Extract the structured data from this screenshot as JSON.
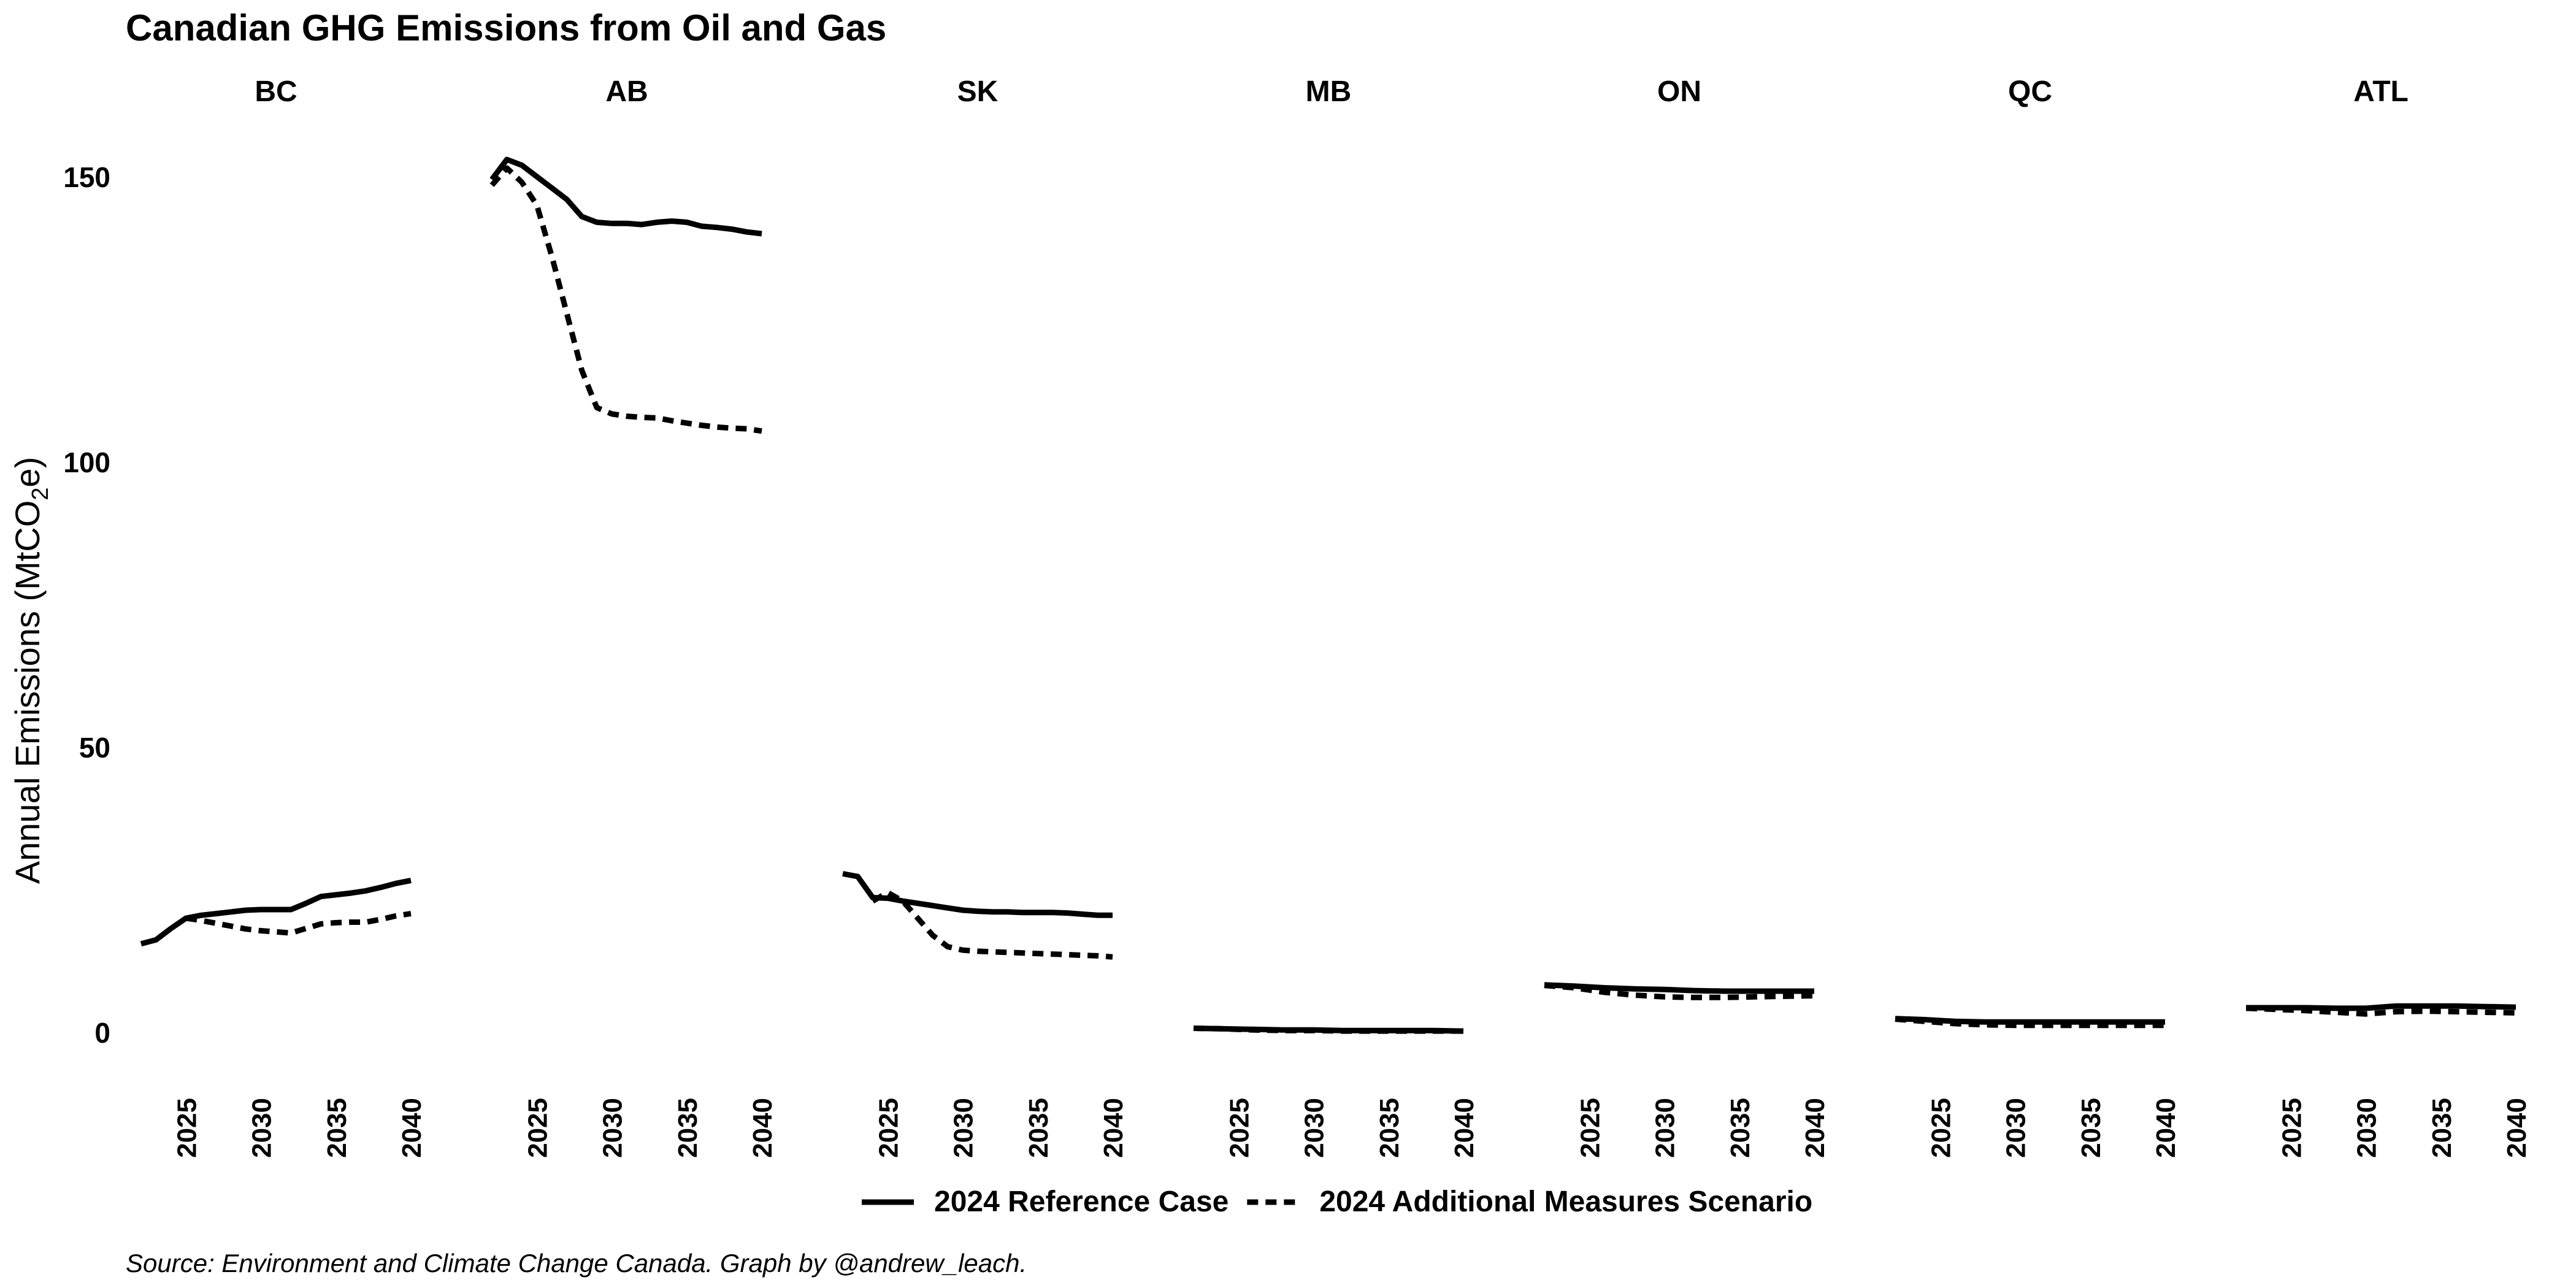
{
  "chart_data": {
    "type": "line",
    "title": "Canadian GHG Emissions from Oil and Gas",
    "ylabel_main": "Annual Emissions  (MtCO",
    "ylabel_sub": "2",
    "ylabel_end": "e)",
    "xlabel": "",
    "caption": "Source: Environment and Climate Change Canada. Graph by @andrew_leach.",
    "ylim": [
      -4,
      160
    ],
    "yticks": [
      0,
      50,
      100,
      150
    ],
    "xlim": [
      2022,
      2040
    ],
    "xticks": [
      2025,
      2030,
      2035,
      2040
    ],
    "grid": false,
    "legend_position": "bottom",
    "series_styles": [
      {
        "name": "2024 Reference Case",
        "dash": "solid",
        "color": "#000000"
      },
      {
        "name": "2024 Additional Measures Scenario",
        "dash": "dashed",
        "color": "#000000"
      }
    ],
    "panels": [
      {
        "label": "BC",
        "series": [
          {
            "name": "2024 Reference Case",
            "x": [
              2022,
              2023,
              2024,
              2025,
              2026,
              2027,
              2028,
              2029,
              2030,
              2031,
              2032,
              2033,
              2034,
              2035,
              2036,
              2037,
              2038,
              2039,
              2040
            ],
            "values": [
              15.5,
              16.2,
              18.2,
              20.0,
              20.5,
              20.8,
              21.1,
              21.4,
              21.5,
              21.5,
              21.5,
              22.6,
              23.8,
              24.1,
              24.4,
              24.8,
              25.4,
              26.1,
              26.6
            ]
          },
          {
            "name": "2024 Additional Measures Scenario",
            "x": [
              2025,
              2026,
              2027,
              2028,
              2029,
              2030,
              2031,
              2032,
              2033,
              2034,
              2035,
              2036,
              2037,
              2038,
              2039,
              2040
            ],
            "values": [
              20.0,
              19.6,
              19.1,
              18.6,
              18.1,
              17.8,
              17.6,
              17.4,
              18.2,
              19.0,
              19.2,
              19.3,
              19.3,
              19.8,
              20.4,
              20.8
            ]
          }
        ]
      },
      {
        "label": "AB",
        "series": [
          {
            "name": "2024 Reference Case",
            "x": [
              2022,
              2023,
              2024,
              2025,
              2026,
              2027,
              2028,
              2029,
              2030,
              2031,
              2032,
              2033,
              2034,
              2035,
              2036,
              2037,
              2038,
              2039,
              2040
            ],
            "values": [
              149.5,
              153.0,
              152.0,
              150.0,
              148.0,
              146.0,
              143.0,
              142.0,
              141.8,
              141.8,
              141.6,
              142.0,
              142.2,
              142.0,
              141.3,
              141.1,
              140.8,
              140.3,
              140.0
            ]
          },
          {
            "name": "2024 Additional Measures Scenario",
            "x": [
              2022,
              2023,
              2024,
              2025,
              2026,
              2027,
              2028,
              2029,
              2030,
              2031,
              2032,
              2033,
              2034,
              2035,
              2036,
              2037,
              2038,
              2039,
              2040
            ],
            "values": [
              148.5,
              151.5,
              149.0,
              145.0,
              136.0,
              126.0,
              116.0,
              109.5,
              108.4,
              108.0,
              107.8,
              107.7,
              107.2,
              106.8,
              106.4,
              106.1,
              105.9,
              105.8,
              105.4
            ]
          }
        ]
      },
      {
        "label": "SK",
        "series": [
          {
            "name": "2024 Reference Case",
            "x": [
              2022,
              2023,
              2024,
              2025,
              2026,
              2027,
              2028,
              2029,
              2030,
              2031,
              2032,
              2033,
              2034,
              2035,
              2036,
              2037,
              2038,
              2039,
              2040
            ],
            "values": [
              27.8,
              27.3,
              23.6,
              23.5,
              23.0,
              22.6,
              22.2,
              21.8,
              21.4,
              21.2,
              21.1,
              21.1,
              21.0,
              21.0,
              21.0,
              20.9,
              20.7,
              20.5,
              20.5
            ]
          },
          {
            "name": "2024 Additional Measures Scenario",
            "x": [
              2024,
              2025,
              2026,
              2027,
              2028,
              2029,
              2030,
              2031,
              2032,
              2033,
              2034,
              2035,
              2036,
              2037,
              2038,
              2039,
              2040
            ],
            "values": [
              23.0,
              24.5,
              23.0,
              20.0,
              17.0,
              15.0,
              14.4,
              14.2,
              14.1,
              14.0,
              13.9,
              13.8,
              13.7,
              13.6,
              13.5,
              13.4,
              13.2
            ]
          }
        ]
      },
      {
        "label": "MB",
        "series": [
          {
            "name": "2024 Reference Case",
            "x": [
              2022,
              2024,
              2026,
              2028,
              2030,
              2032,
              2034,
              2036,
              2038,
              2040
            ],
            "values": [
              0.7,
              0.6,
              0.5,
              0.4,
              0.4,
              0.3,
              0.3,
              0.3,
              0.3,
              0.2
            ]
          },
          {
            "name": "2024 Additional Measures Scenario",
            "x": [
              2022,
              2024,
              2026,
              2028,
              2030,
              2032,
              2034,
              2036,
              2038,
              2040
            ],
            "values": [
              0.7,
              0.6,
              0.4,
              0.3,
              0.3,
              0.2,
              0.2,
              0.2,
              0.2,
              0.2
            ]
          }
        ]
      },
      {
        "label": "ON",
        "series": [
          {
            "name": "2024 Reference Case",
            "x": [
              2022,
              2024,
              2026,
              2028,
              2030,
              2032,
              2034,
              2036,
              2038,
              2040
            ],
            "values": [
              8.3,
              8.1,
              7.8,
              7.6,
              7.5,
              7.3,
              7.2,
              7.2,
              7.2,
              7.2
            ]
          },
          {
            "name": "2024 Additional Measures Scenario",
            "x": [
              2022,
              2024,
              2026,
              2028,
              2030,
              2032,
              2034,
              2036,
              2038,
              2040
            ],
            "values": [
              8.2,
              7.8,
              7.0,
              6.5,
              6.2,
              6.1,
              6.1,
              6.2,
              6.3,
              6.4
            ]
          }
        ]
      },
      {
        "label": "QC",
        "series": [
          {
            "name": "2024 Reference Case",
            "x": [
              2022,
              2024,
              2026,
              2028,
              2030,
              2032,
              2034,
              2036,
              2038,
              2040
            ],
            "values": [
              2.4,
              2.2,
              1.9,
              1.8,
              1.8,
              1.8,
              1.8,
              1.8,
              1.8,
              1.8
            ]
          },
          {
            "name": "2024 Additional Measures Scenario",
            "x": [
              2022,
              2024,
              2026,
              2028,
              2030,
              2032,
              2034,
              2036,
              2038,
              2040
            ],
            "values": [
              2.3,
              1.9,
              1.5,
              1.3,
              1.2,
              1.2,
              1.2,
              1.2,
              1.2,
              1.2
            ]
          }
        ]
      },
      {
        "label": "ATL",
        "series": [
          {
            "name": "2024 Reference Case",
            "x": [
              2022,
              2024,
              2026,
              2028,
              2030,
              2032,
              2034,
              2036,
              2038,
              2040
            ],
            "values": [
              4.3,
              4.3,
              4.3,
              4.2,
              4.2,
              4.6,
              4.6,
              4.6,
              4.5,
              4.4
            ]
          },
          {
            "name": "2024 Additional Measures Scenario",
            "x": [
              2022,
              2024,
              2026,
              2028,
              2030,
              2032,
              2034,
              2036,
              2038,
              2040
            ],
            "values": [
              4.2,
              4.0,
              3.8,
              3.5,
              3.2,
              3.6,
              3.7,
              3.6,
              3.5,
              3.4
            ]
          }
        ]
      }
    ]
  }
}
